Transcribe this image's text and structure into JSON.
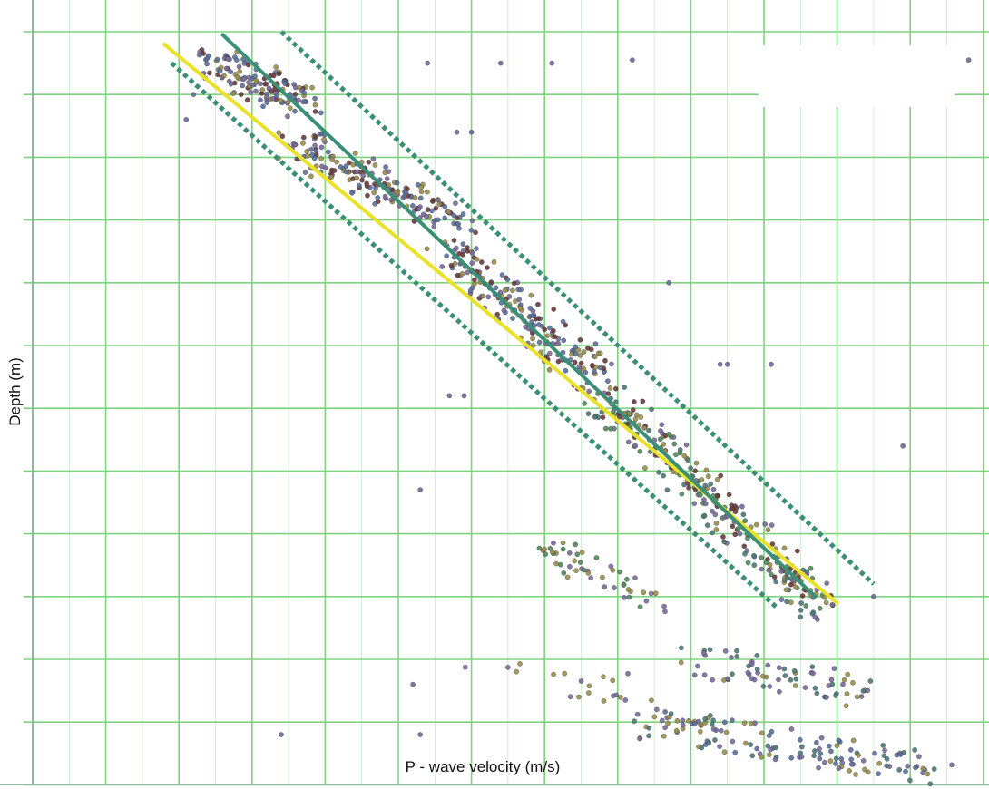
{
  "chart_data": {
    "type": "scatter",
    "title": "",
    "xlabel": "P - wave velocity (m/s)",
    "ylabel": "Depth (m)",
    "xlim": [
      0,
      13.2
    ],
    "ylim": [
      0,
      12
    ],
    "x_major_step": 1,
    "x_minor_step": 0.5,
    "y_major_step": 1,
    "grid": true,
    "y_inverted": true,
    "grid_color": "#7fd37f",
    "lines": [
      {
        "style": "solid",
        "color": "#e9e12a",
        "x": [
          1.8,
          11
        ],
        "y": [
          0.2,
          9.1
        ]
      },
      {
        "style": "solid",
        "color": "#3a8f74",
        "x": [
          2.6,
          10.7
        ],
        "y": [
          0.05,
          9.0
        ]
      },
      {
        "style": "dotted",
        "color": "#3a8f74",
        "x": [
          3.4,
          11.5
        ],
        "y": [
          0,
          8.8
        ]
      },
      {
        "style": "dotted",
        "color": "#3a8f74",
        "x": [
          1.9,
          10.2
        ],
        "y": [
          0.5,
          9.2
        ]
      }
    ],
    "clusters": [
      {
        "x": [
          2.4,
          3.8
        ],
        "y": [
          0.4,
          1.2
        ],
        "n": 140,
        "palette": [
          "#6b3a3a",
          "#7a6a9e",
          "#9a8f4a",
          "#5a6fa0"
        ]
      },
      {
        "x": [
          3.6,
          5.8
        ],
        "y": [
          1.8,
          3.0
        ],
        "n": 180,
        "palette": [
          "#6b3a3a",
          "#5a6fa0",
          "#9a8f4a",
          "#7a6a9e"
        ]
      },
      {
        "x": [
          5.6,
          7.8
        ],
        "y": [
          3.4,
          5.6
        ],
        "n": 200,
        "palette": [
          "#5a6fa0",
          "#7a6a9e",
          "#6b3a3a",
          "#9a8f4a"
        ]
      },
      {
        "x": [
          7.8,
          10.8
        ],
        "y": [
          5.8,
          9.2
        ],
        "n": 260,
        "palette": [
          "#4a7a7a",
          "#7a6a9e",
          "#9a8f4a",
          "#6b3a3a",
          "#4e8a5a"
        ]
      },
      {
        "x": [
          7.0,
          8.5
        ],
        "y": [
          8.2,
          9.2
        ],
        "n": 50,
        "palette": [
          "#7a6a9e",
          "#4e8a5a",
          "#9a8f4a"
        ]
      },
      {
        "x": [
          9.0,
          11.4
        ],
        "y": [
          10.0,
          10.5
        ],
        "n": 70,
        "palette": [
          "#4a7a7a",
          "#9a8f4a",
          "#7a6a9e"
        ]
      },
      {
        "x": [
          8.4,
          12.4
        ],
        "y": [
          11.0,
          11.8
        ],
        "n": 140,
        "palette": [
          "#4a7a7a",
          "#9a8f4a",
          "#7a6a9e",
          "#5a6fa0"
        ]
      },
      {
        "x": [
          5.8,
          8.2
        ],
        "y": [
          10.2,
          10.5
        ],
        "n": 20,
        "palette": [
          "#9a8f4a",
          "#7a6a9e"
        ]
      }
    ],
    "outliers": [
      {
        "x": [
          5.4,
          6.4,
          7.1,
          8.2
        ],
        "y": [
          0.5,
          0.5,
          0.5,
          0.45
        ]
      },
      {
        "x": [
          11.8,
          12.5,
          12.8
        ],
        "y": [
          0.5,
          0.5,
          0.45
        ]
      },
      {
        "x": [
          2.1,
          2.2
        ],
        "y": [
          1.4,
          1.0
        ]
      },
      {
        "x": [
          5.8,
          6.0,
          8.7
        ],
        "y": [
          1.6,
          1.6,
          4.0
        ]
      },
      {
        "x": [
          9.4,
          9.5,
          10.1
        ],
        "y": [
          5.3,
          5.3,
          5.3
        ]
      },
      {
        "x": [
          11.9
        ],
        "y": [
          6.6
        ]
      },
      {
        "x": [
          5.7,
          5.9,
          5.3
        ],
        "y": [
          5.8,
          5.8,
          7.3
        ]
      },
      {
        "x": [
          3.4,
          5.2,
          5.3
        ],
        "y": [
          11.2,
          10.4,
          11.2
        ]
      },
      {
        "x": [
          11.5
        ],
        "y": [
          9.0
        ]
      }
    ]
  }
}
